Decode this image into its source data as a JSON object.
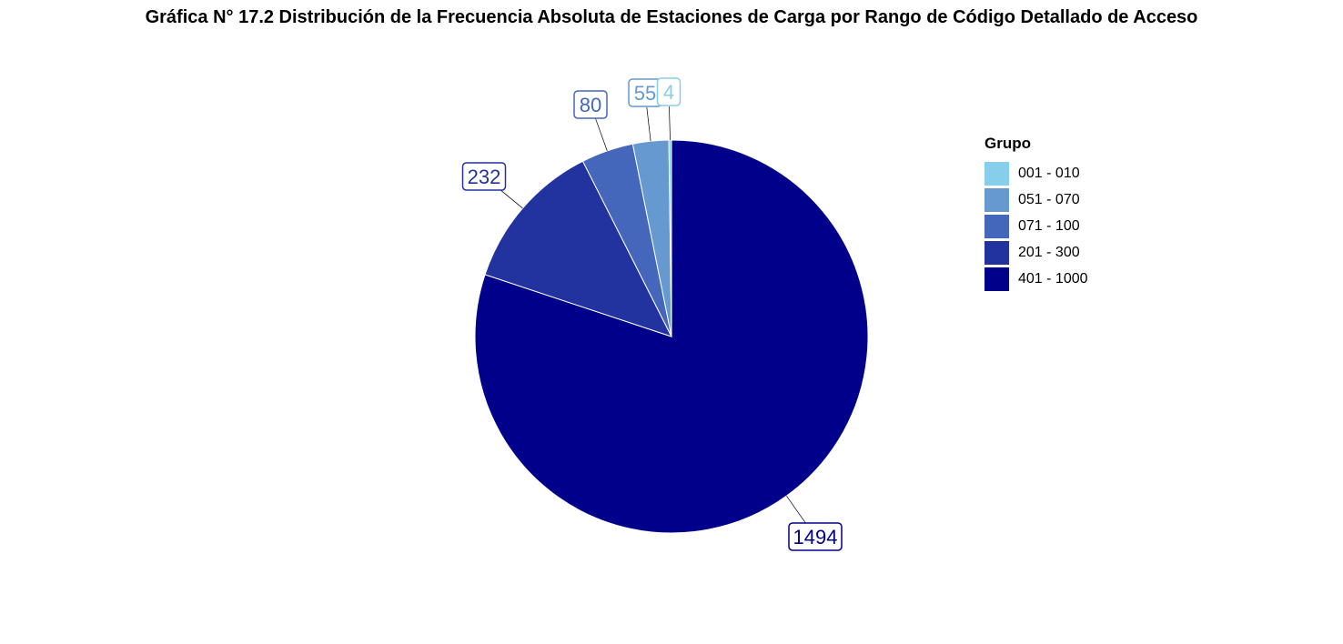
{
  "chart_data": {
    "type": "pie",
    "title": "Gráfica N° 17.2 Distribución de la Frecuencia Absoluta de Estaciones de Carga por Rango de Código Detallado de Acceso",
    "legend_title": "Grupo",
    "legend_position": "right",
    "slices": [
      {
        "label": "401 - 1000",
        "value": 1494,
        "color": "#00008B"
      },
      {
        "label": "201 - 300",
        "value": 232,
        "color": "#2233A0"
      },
      {
        "label": "071 - 100",
        "value": 80,
        "color": "#4466BB"
      },
      {
        "label": "051 - 070",
        "value": 55,
        "color": "#6699D0"
      },
      {
        "label": "001 - 010",
        "value": 4,
        "color": "#87CEEB"
      }
    ],
    "legend_items": [
      {
        "label": "001 - 010",
        "color": "#87CEEB"
      },
      {
        "label": "051 - 070",
        "color": "#6699D0"
      },
      {
        "label": "071 - 100",
        "color": "#4466BB"
      },
      {
        "label": "201 - 300",
        "color": "#2233A0"
      },
      {
        "label": "401 - 1000",
        "color": "#00008B"
      }
    ]
  }
}
